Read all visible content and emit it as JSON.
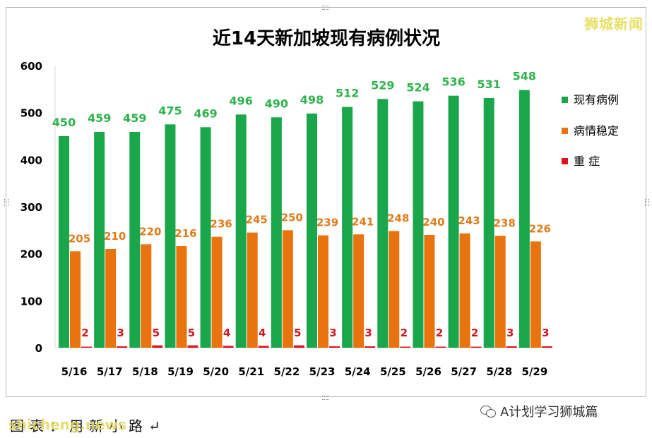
{
  "watermark_top": "狮城新闻",
  "footer": {
    "source_text": "图表：用新小路↵",
    "overlay_text": "shicheng.news",
    "account_name": "A计划学习狮城篇"
  },
  "colors": {
    "current": "#1aa64a",
    "stable": "#e8730f",
    "severe": "#e0111c"
  },
  "chart_data": {
    "type": "bar",
    "title": "近14天新加坡现有病例状况",
    "categories": [
      "5/16",
      "5/17",
      "5/18",
      "5/19",
      "5/20",
      "5/21",
      "5/22",
      "5/23",
      "5/24",
      "5/25",
      "5/26",
      "5/27",
      "5/28",
      "5/29"
    ],
    "series": [
      {
        "name": "现有病例",
        "values": [
          450,
          459,
          459,
          475,
          469,
          496,
          490,
          498,
          512,
          529,
          524,
          536,
          531,
          548
        ]
      },
      {
        "name": "病情稳定",
        "values": [
          205,
          210,
          220,
          216,
          236,
          245,
          250,
          239,
          241,
          248,
          240,
          243,
          238,
          226
        ]
      },
      {
        "name": "重 症",
        "values": [
          2,
          3,
          5,
          5,
          4,
          4,
          5,
          3,
          3,
          2,
          2,
          2,
          3,
          3
        ]
      }
    ],
    "yticks": [
      0,
      100,
      200,
      300,
      400,
      500,
      600
    ],
    "ylim": [
      0,
      600
    ],
    "grid": false,
    "legend_position": "right"
  }
}
